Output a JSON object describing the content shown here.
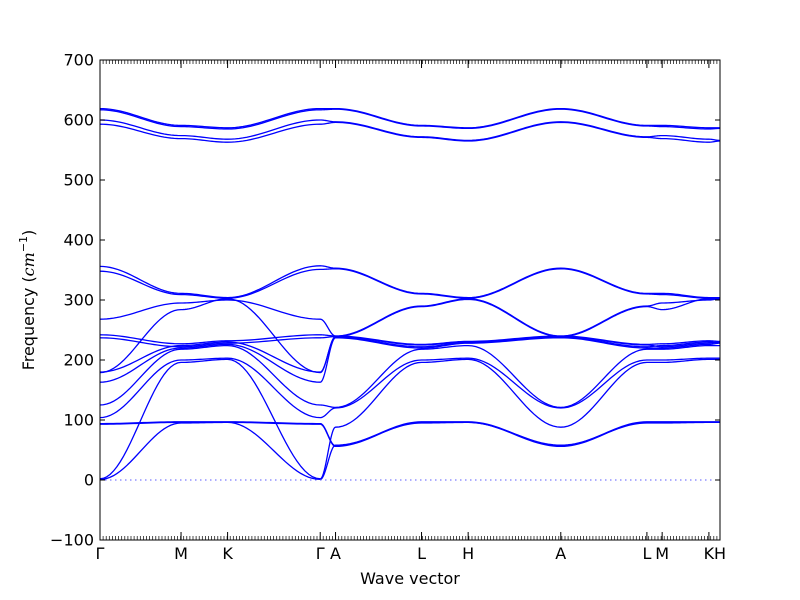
{
  "chart_data": {
    "type": "line",
    "xlabel": "Wave vector",
    "ylabel": "Frequency (cm^-1)",
    "ylabel_text": "Frequency (",
    "ylabel_unit_base": "cm",
    "ylabel_unit_exp": "−1",
    "ylabel_close": ")",
    "ylim": [
      -100,
      700
    ],
    "y_ticks": [
      -100,
      0,
      100,
      200,
      300,
      400,
      500,
      600,
      700
    ],
    "x_ticks": [
      {
        "label": "Γ",
        "x": 0
      },
      {
        "label": "M",
        "x": 0.1307
      },
      {
        "label": "K",
        "x": 0.2058
      },
      {
        "label": "Γ",
        "x": 0.3552
      },
      {
        "label": "A",
        "x": 0.3799
      },
      {
        "label": "L",
        "x": 0.5186
      },
      {
        "label": "H",
        "x": 0.5938
      },
      {
        "label": "A",
        "x": 0.7432
      },
      {
        "label": "L",
        "x": 0.8821
      },
      {
        "label": "M",
        "x": 0.9067
      },
      {
        "label": "K",
        "x": 0.9821
      },
      {
        "label": "H",
        "x": 1.0
      }
    ],
    "zero_line": true,
    "grid": false,
    "colors": {
      "bands": "#0000ff",
      "zero": "#5b5bff",
      "axis": "#000000"
    },
    "series": [
      {
        "points": [
          [
            0,
            619
          ],
          [
            0.1307,
            591
          ],
          [
            0.2058,
            587
          ],
          [
            0.3552,
            619
          ],
          [
            0.3799,
            619
          ],
          [
            0.5186,
            591
          ],
          [
            0.5938,
            587
          ],
          [
            0.7432,
            619
          ],
          [
            0.8821,
            591
          ],
          [
            0.9067,
            591
          ],
          [
            0.9821,
            587
          ],
          [
            1.0,
            587
          ]
        ]
      },
      {
        "points": [
          [
            0,
            617
          ],
          [
            0.1307,
            589
          ],
          [
            0.2058,
            585
          ],
          [
            0.3552,
            617
          ],
          [
            0.3799,
            618
          ],
          [
            0.5186,
            590
          ],
          [
            0.5938,
            586
          ],
          [
            0.7432,
            618
          ],
          [
            0.8821,
            590
          ],
          [
            0.9067,
            589
          ],
          [
            0.9821,
            585
          ],
          [
            1.0,
            586
          ]
        ]
      },
      {
        "points": [
          [
            0,
            600
          ],
          [
            0.1307,
            574
          ],
          [
            0.2058,
            568
          ],
          [
            0.3552,
            600
          ],
          [
            0.3799,
            597
          ],
          [
            0.5186,
            572
          ],
          [
            0.5938,
            566
          ],
          [
            0.7432,
            597
          ],
          [
            0.8821,
            572
          ],
          [
            0.9067,
            574
          ],
          [
            0.9821,
            568
          ],
          [
            1.0,
            566
          ]
        ]
      },
      {
        "points": [
          [
            0,
            593
          ],
          [
            0.1307,
            569
          ],
          [
            0.2058,
            563
          ],
          [
            0.3552,
            593
          ],
          [
            0.3799,
            596
          ],
          [
            0.5186,
            571
          ],
          [
            0.5938,
            565
          ],
          [
            0.7432,
            596
          ],
          [
            0.8821,
            571
          ],
          [
            0.9067,
            569
          ],
          [
            0.9821,
            563
          ],
          [
            1.0,
            565
          ]
        ]
      },
      {
        "points": [
          [
            0,
            356
          ],
          [
            0.1307,
            311
          ],
          [
            0.2058,
            304
          ],
          [
            0.3552,
            357
          ],
          [
            0.3799,
            353
          ],
          [
            0.5186,
            311
          ],
          [
            0.5938,
            304
          ],
          [
            0.7432,
            353
          ],
          [
            0.8821,
            311
          ],
          [
            0.9067,
            311
          ],
          [
            0.9821,
            304
          ],
          [
            1.0,
            304
          ]
        ]
      },
      {
        "points": [
          [
            0,
            348
          ],
          [
            0.1307,
            309
          ],
          [
            0.2058,
            303
          ],
          [
            0.3552,
            351
          ],
          [
            0.3799,
            352
          ],
          [
            0.5186,
            310
          ],
          [
            0.5938,
            303
          ],
          [
            0.7432,
            352
          ],
          [
            0.8821,
            310
          ],
          [
            0.9067,
            309
          ],
          [
            0.9821,
            303
          ],
          [
            1.0,
            303
          ]
        ]
      },
      {
        "points": [
          [
            0,
            268
          ],
          [
            0.1307,
            295
          ],
          [
            0.2058,
            300
          ],
          [
            0.3552,
            268
          ],
          [
            0.3799,
            240
          ],
          [
            0.5186,
            290
          ],
          [
            0.5938,
            302
          ],
          [
            0.7432,
            240
          ],
          [
            0.8821,
            290
          ],
          [
            0.9067,
            295
          ],
          [
            0.9821,
            300
          ],
          [
            1.0,
            302
          ]
        ]
      },
      {
        "points": [
          [
            0,
            179
          ],
          [
            0.1307,
            284
          ],
          [
            0.2058,
            302
          ],
          [
            0.3552,
            179
          ],
          [
            0.3799,
            239
          ],
          [
            0.5186,
            289
          ],
          [
            0.5938,
            301
          ],
          [
            0.7432,
            239
          ],
          [
            0.8821,
            289
          ],
          [
            0.9067,
            284
          ],
          [
            0.9821,
            302
          ],
          [
            1.0,
            301
          ]
        ]
      },
      {
        "points": [
          [
            0,
            242
          ],
          [
            0.1307,
            227
          ],
          [
            0.2058,
            232
          ],
          [
            0.3552,
            242
          ],
          [
            0.3799,
            240
          ],
          [
            0.5186,
            226
          ],
          [
            0.5938,
            231
          ],
          [
            0.7432,
            240
          ],
          [
            0.8821,
            226
          ],
          [
            0.9067,
            227
          ],
          [
            0.9821,
            232
          ],
          [
            1.0,
            231
          ]
        ]
      },
      {
        "points": [
          [
            0,
            237
          ],
          [
            0.1307,
            222
          ],
          [
            0.2058,
            228
          ],
          [
            0.3552,
            237
          ],
          [
            0.3799,
            239
          ],
          [
            0.5186,
            225
          ],
          [
            0.5938,
            230
          ],
          [
            0.7432,
            239
          ],
          [
            0.8821,
            225
          ],
          [
            0.9067,
            222
          ],
          [
            0.9821,
            228
          ],
          [
            1.0,
            230
          ]
        ]
      },
      {
        "points": [
          [
            0,
            180
          ],
          [
            0.1307,
            224
          ],
          [
            0.2058,
            230
          ],
          [
            0.3552,
            180
          ],
          [
            0.3799,
            238
          ],
          [
            0.5186,
            222
          ],
          [
            0.5938,
            229
          ],
          [
            0.7432,
            238
          ],
          [
            0.8821,
            222
          ],
          [
            0.9067,
            224
          ],
          [
            0.9821,
            230
          ],
          [
            1.0,
            229
          ]
        ]
      },
      {
        "points": [
          [
            0,
            163
          ],
          [
            0.1307,
            220
          ],
          [
            0.2058,
            226
          ],
          [
            0.3552,
            163
          ],
          [
            0.3799,
            237
          ],
          [
            0.5186,
            220
          ],
          [
            0.5938,
            228
          ],
          [
            0.7432,
            237
          ],
          [
            0.8821,
            220
          ],
          [
            0.9067,
            220
          ],
          [
            0.9821,
            226
          ],
          [
            1.0,
            228
          ]
        ]
      },
      {
        "points": [
          [
            0,
            125
          ],
          [
            0.1307,
            218
          ],
          [
            0.2058,
            224
          ],
          [
            0.3552,
            125
          ],
          [
            0.3799,
            121
          ],
          [
            0.5186,
            218
          ],
          [
            0.5938,
            224
          ],
          [
            0.7432,
            121
          ],
          [
            0.8821,
            218
          ],
          [
            0.9067,
            218
          ],
          [
            0.9821,
            224
          ],
          [
            1.0,
            224
          ]
        ]
      },
      {
        "points": [
          [
            0,
            104
          ],
          [
            0.1307,
            200
          ],
          [
            0.2058,
            203
          ],
          [
            0.3552,
            104
          ],
          [
            0.3799,
            120
          ],
          [
            0.5186,
            200
          ],
          [
            0.5938,
            203
          ],
          [
            0.7432,
            120
          ],
          [
            0.8821,
            200
          ],
          [
            0.9067,
            200
          ],
          [
            0.9821,
            203
          ],
          [
            1.0,
            203
          ]
        ]
      },
      {
        "points": [
          [
            0,
            2
          ],
          [
            0.1307,
            196
          ],
          [
            0.2058,
            201
          ],
          [
            0.3552,
            2
          ],
          [
            0.3799,
            88
          ],
          [
            0.5186,
            196
          ],
          [
            0.5938,
            201
          ],
          [
            0.7432,
            88
          ],
          [
            0.8821,
            196
          ],
          [
            0.9067,
            196
          ],
          [
            0.9821,
            201
          ],
          [
            1.0,
            201
          ]
        ]
      },
      {
        "points": [
          [
            0,
            94
          ],
          [
            0.1307,
            97
          ],
          [
            0.2058,
            97
          ],
          [
            0.3552,
            94
          ],
          [
            0.3799,
            57
          ],
          [
            0.5186,
            97
          ],
          [
            0.5938,
            97
          ],
          [
            0.7432,
            57
          ],
          [
            0.8821,
            97
          ],
          [
            0.9067,
            97
          ],
          [
            0.9821,
            97
          ],
          [
            1.0,
            97
          ]
        ]
      },
      {
        "points": [
          [
            0,
            93
          ],
          [
            0.1307,
            96
          ],
          [
            0.2058,
            96
          ],
          [
            0.3552,
            93
          ],
          [
            0.3799,
            56
          ],
          [
            0.5186,
            96
          ],
          [
            0.5938,
            96
          ],
          [
            0.7432,
            56
          ],
          [
            0.8821,
            96
          ],
          [
            0.9067,
            96
          ],
          [
            0.9821,
            96
          ],
          [
            1.0,
            96
          ]
        ]
      },
      {
        "points": [
          [
            0,
            1
          ],
          [
            0.1307,
            95
          ],
          [
            0.2058,
            96
          ],
          [
            0.3552,
            1
          ],
          [
            0.3799,
            58
          ],
          [
            0.5186,
            95
          ],
          [
            0.5938,
            96
          ],
          [
            0.7432,
            58
          ],
          [
            0.8821,
            95
          ],
          [
            0.9067,
            95
          ],
          [
            0.9821,
            96
          ],
          [
            1.0,
            96
          ]
        ]
      }
    ]
  }
}
